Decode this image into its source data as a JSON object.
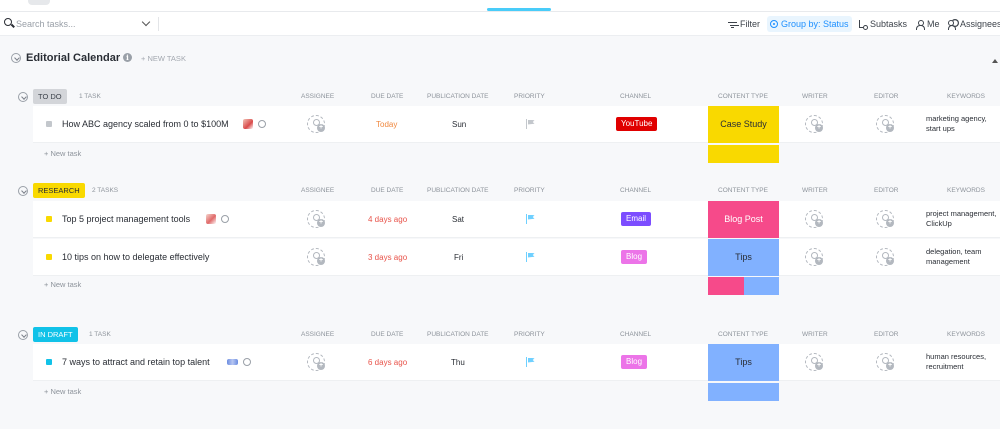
{
  "toolbar": {
    "search_placeholder": "Search tasks...",
    "filter": "Filter",
    "group_by": "Group by: Status",
    "subtasks": "Subtasks",
    "me": "Me",
    "assignees": "Assignees"
  },
  "page": {
    "title": "Editorial Calendar",
    "new_task": "+ NEW TASK"
  },
  "columns": {
    "assignee": "ASSIGNEE",
    "due_date": "DUE DATE",
    "publication_date": "PUBLICATION DATE",
    "priority": "PRIORITY",
    "channel": "CHANNEL",
    "content_type": "CONTENT TYPE",
    "writer": "WRITER",
    "editor": "EDITOR",
    "keywords": "KEYWORDS"
  },
  "add_task_label": "+ New task",
  "colors": {
    "todo_pill": "#d3d5d9",
    "research_pill": "#f9d900",
    "draft_pill": "#11c2e8",
    "youtube": "#e00000",
    "email": "#7c4dff",
    "blog": "#ec74e8",
    "case_study": "#f9d900",
    "blog_post": "#f64a8a",
    "tips": "#81b1ff",
    "flag_grey": "#c3c7cc",
    "flag_blue": "#6fd0ff",
    "overdue": "#e8534a",
    "today": "#f0883f"
  },
  "groups": [
    {
      "status": "TO DO",
      "count": "1 TASK",
      "tasks": [
        {
          "name": "How ABC agency scaled from 0 to $100M",
          "due": "Today",
          "publication": "Sun",
          "channel": "YouTube",
          "content_type": "Case Study",
          "keywords": "marketing agency, start ups"
        }
      ]
    },
    {
      "status": "RESEARCH",
      "count": "2 TASKS",
      "tasks": [
        {
          "name": "Top 5 project management tools",
          "due": "4 days ago",
          "publication": "Sat",
          "channel": "Email",
          "content_type": "Blog Post",
          "keywords": "project management, ClickUp"
        },
        {
          "name": "10 tips on how to delegate effectively",
          "due": "3 days ago",
          "publication": "Fri",
          "channel": "Blog",
          "content_type": "Tips",
          "keywords": "delegation, team management"
        }
      ]
    },
    {
      "status": "IN DRAFT",
      "count": "1 TASK",
      "tasks": [
        {
          "name": "7 ways to attract and retain top talent",
          "due": "6 days ago",
          "publication": "Thu",
          "channel": "Blog",
          "content_type": "Tips",
          "keywords": "human resources, recruitment"
        }
      ]
    }
  ]
}
